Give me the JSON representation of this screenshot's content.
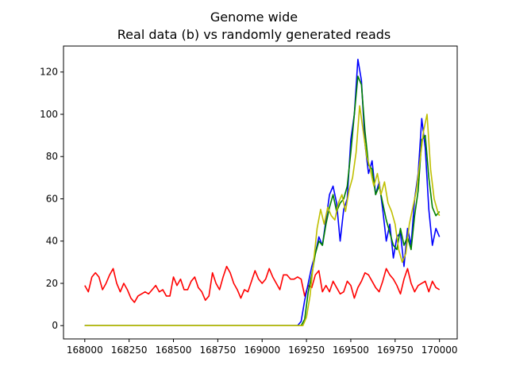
{
  "chart_data": {
    "type": "line",
    "title": "Genome wide",
    "subtitle": "Real data (b) vs randomly generated reads",
    "xlabel": "",
    "ylabel": "",
    "xlim": [
      167880,
      170100
    ],
    "ylim": [
      -6.3,
      132.3
    ],
    "xticks": [
      168000,
      168250,
      168500,
      168750,
      169000,
      169250,
      169500,
      169750,
      170000
    ],
    "xtick_labels": [
      "168000",
      "168250",
      "168500",
      "168750",
      "169000",
      "169250",
      "169500",
      "169750",
      "170000"
    ],
    "yticks": [
      0,
      20,
      40,
      60,
      80,
      100,
      120
    ],
    "ytick_labels": [
      "0",
      "20",
      "40",
      "60",
      "80",
      "100",
      "120"
    ],
    "grid": false,
    "legend": "none",
    "series": [
      {
        "color": "#ff0000",
        "x": [
          168000,
          168020,
          168040,
          168060,
          168080,
          168100,
          168120,
          168140,
          168160,
          168180,
          168200,
          168220,
          168240,
          168260,
          168280,
          168300,
          168320,
          168340,
          168360,
          168380,
          168400,
          168420,
          168440,
          168460,
          168480,
          168500,
          168520,
          168540,
          168560,
          168580,
          168600,
          168620,
          168640,
          168660,
          168680,
          168700,
          168720,
          168740,
          168760,
          168780,
          168800,
          168820,
          168840,
          168860,
          168880,
          168900,
          168920,
          168940,
          168960,
          168980,
          169000,
          169020,
          169040,
          169060,
          169080,
          169100,
          169120,
          169140,
          169160,
          169180,
          169200,
          169220,
          169240,
          169260,
          169280,
          169300,
          169320,
          169340,
          169360,
          169380,
          169400,
          169420,
          169440,
          169460,
          169480,
          169500,
          169520,
          169540,
          169560,
          169580,
          169600,
          169620,
          169640,
          169660,
          169680,
          169700,
          169720,
          169740,
          169760,
          169780,
          169800,
          169820,
          169840,
          169860,
          169880,
          169900,
          169920,
          169940,
          169960,
          169980,
          170000
        ],
        "y": [
          19,
          16,
          23,
          25,
          23,
          17,
          20,
          24,
          27,
          20,
          16,
          20,
          17,
          13,
          11,
          14,
          15,
          16,
          15,
          17,
          19,
          16,
          17,
          14,
          14,
          23,
          19,
          22,
          17,
          17,
          21,
          23,
          18,
          16,
          12,
          14,
          25,
          20,
          17,
          23,
          28,
          25,
          20,
          17,
          13,
          17,
          16,
          21,
          26,
          22,
          20,
          22,
          27,
          23,
          20,
          17,
          24,
          24,
          22,
          22,
          23,
          22,
          14,
          19,
          18,
          24,
          26,
          16,
          19,
          16,
          21,
          18,
          15,
          16,
          21,
          19,
          13,
          18,
          21,
          25,
          24,
          21,
          18,
          16,
          21,
          27,
          24,
          22,
          19,
          15,
          22,
          27,
          20,
          16,
          19,
          20,
          21,
          16,
          21,
          18,
          17
        ]
      },
      {
        "color": "#0000ff",
        "x": [
          168000,
          169200,
          169220,
          169240,
          169260,
          169280,
          169300,
          169320,
          169340,
          169360,
          169380,
          169400,
          169420,
          169440,
          169460,
          169480,
          169500,
          169520,
          169540,
          169560,
          169580,
          169600,
          169620,
          169640,
          169660,
          169680,
          169700,
          169720,
          169740,
          169760,
          169780,
          169800,
          169820,
          169840,
          169860,
          169880,
          169900,
          169920,
          169940,
          169960,
          169980,
          170000
        ],
        "y": [
          0,
          0,
          2,
          12,
          20,
          28,
          34,
          42,
          38,
          50,
          62,
          66,
          58,
          40,
          55,
          60,
          88,
          100,
          126,
          116,
          86,
          72,
          78,
          62,
          68,
          55,
          40,
          48,
          32,
          42,
          44,
          28,
          46,
          38,
          60,
          72,
          98,
          84,
          55,
          38,
          46,
          42
        ]
      },
      {
        "color": "#008000",
        "x": [
          168000,
          169220,
          169240,
          169260,
          169280,
          169300,
          169320,
          169340,
          169360,
          169380,
          169400,
          169420,
          169440,
          169460,
          169480,
          169500,
          169520,
          169540,
          169560,
          169580,
          169600,
          169620,
          169640,
          169660,
          169680,
          169700,
          169720,
          169740,
          169760,
          169780,
          169800,
          169820,
          169840,
          169860,
          169880,
          169900,
          169920,
          169940,
          169960,
          169980,
          170000
        ],
        "y": [
          0,
          0,
          3,
          16,
          24,
          34,
          40,
          38,
          48,
          56,
          62,
          54,
          58,
          60,
          66,
          82,
          100,
          118,
          114,
          92,
          76,
          74,
          62,
          66,
          58,
          50,
          44,
          38,
          36,
          46,
          38,
          42,
          36,
          52,
          64,
          88,
          90,
          70,
          56,
          52,
          54
        ]
      },
      {
        "color": "#bfbf00",
        "x": [
          168000,
          169230,
          169250,
          169270,
          169290,
          169310,
          169330,
          169350,
          169370,
          169390,
          169410,
          169430,
          169450,
          169470,
          169490,
          169510,
          169530,
          169550,
          169570,
          169590,
          169610,
          169630,
          169650,
          169670,
          169690,
          169710,
          169730,
          169750,
          169770,
          169790,
          169810,
          169830,
          169850,
          169870,
          169890,
          169910,
          169930,
          169950,
          169970,
          169990,
          170000
        ],
        "y": [
          0,
          0,
          4,
          14,
          30,
          46,
          55,
          48,
          56,
          52,
          50,
          58,
          62,
          54,
          64,
          70,
          82,
          104,
          92,
          80,
          74,
          66,
          72,
          62,
          68,
          58,
          54,
          48,
          36,
          30,
          34,
          48,
          56,
          64,
          78,
          92,
          100,
          74,
          60,
          54,
          52
        ]
      }
    ]
  }
}
